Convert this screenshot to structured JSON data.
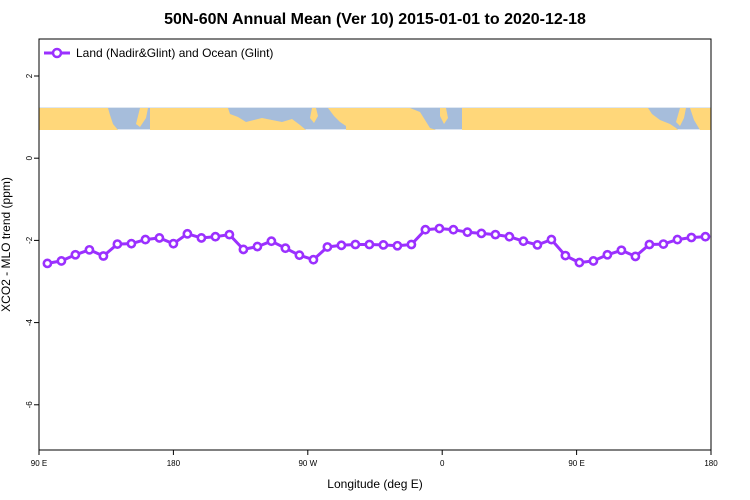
{
  "chart_data": {
    "type": "line",
    "title": "50N-60N Annual Mean (Ver 10)   2015-01-01 to 2020-12-18",
    "xlabel": "Longitude (deg E)",
    "ylabel": "XCO2 - MLO trend (ppm)",
    "xlim": [
      90,
      450
    ],
    "ylim": [
      -7.1,
      2.9
    ],
    "x_ticks": [
      {
        "value": 90,
        "label": "90 E"
      },
      {
        "value": 162,
        "label": "180"
      },
      {
        "value": 234,
        "label": "90 W"
      },
      {
        "value": 306,
        "label": "0"
      },
      {
        "value": 378,
        "label": "90 E"
      },
      {
        "value": 450,
        "label": "180"
      }
    ],
    "y_ticks": [
      {
        "value": 2,
        "label": "2"
      },
      {
        "value": 0,
        "label": "0"
      },
      {
        "value": -2,
        "label": "-2"
      },
      {
        "value": -4,
        "label": "-4"
      },
      {
        "value": -6,
        "label": "-6"
      }
    ],
    "legend_position": "top-left",
    "map_band": {
      "y_min": 0.7,
      "y_max": 1.23
    },
    "colors": {
      "series": "#9B30FF",
      "ocean": "#A6BDDB",
      "land": "#FFD77A"
    },
    "series": [
      {
        "name": "Land (Nadir&Glint) and Ocean (Glint)",
        "x": [
          94.5,
          102,
          109.5,
          117,
          124.5,
          132,
          139.5,
          147,
          154.5,
          162,
          169.5,
          177,
          184.5,
          192,
          199.5,
          207,
          214.5,
          222,
          229.5,
          237,
          244.5,
          252,
          259.5,
          267,
          274.5,
          282,
          289.5,
          297,
          304.5,
          312,
          319.5,
          327,
          334.5,
          342,
          349.5,
          357,
          364.5,
          372,
          379.5,
          387,
          394.5,
          402,
          409.5,
          417,
          424.5,
          432,
          439.5,
          447
        ],
        "values": [
          -2.56,
          -2.5,
          -2.35,
          -2.23,
          -2.38,
          -2.09,
          -2.08,
          -1.98,
          -1.94,
          -2.08,
          -1.84,
          -1.94,
          -1.91,
          -1.86,
          -2.22,
          -2.15,
          -2.02,
          -2.19,
          -2.36,
          -2.47,
          -2.16,
          -2.12,
          -2.1,
          -2.1,
          -2.11,
          -2.13,
          -2.1,
          -1.74,
          -1.71,
          -1.74,
          -1.8,
          -1.83,
          -1.86,
          -1.91,
          -2.02,
          -2.11,
          -1.98,
          -2.37,
          -2.54,
          -2.5,
          -2.35,
          -2.24,
          -2.39,
          -2.1,
          -2.09,
          -1.98,
          -1.93,
          -1.91
        ]
      }
    ]
  }
}
